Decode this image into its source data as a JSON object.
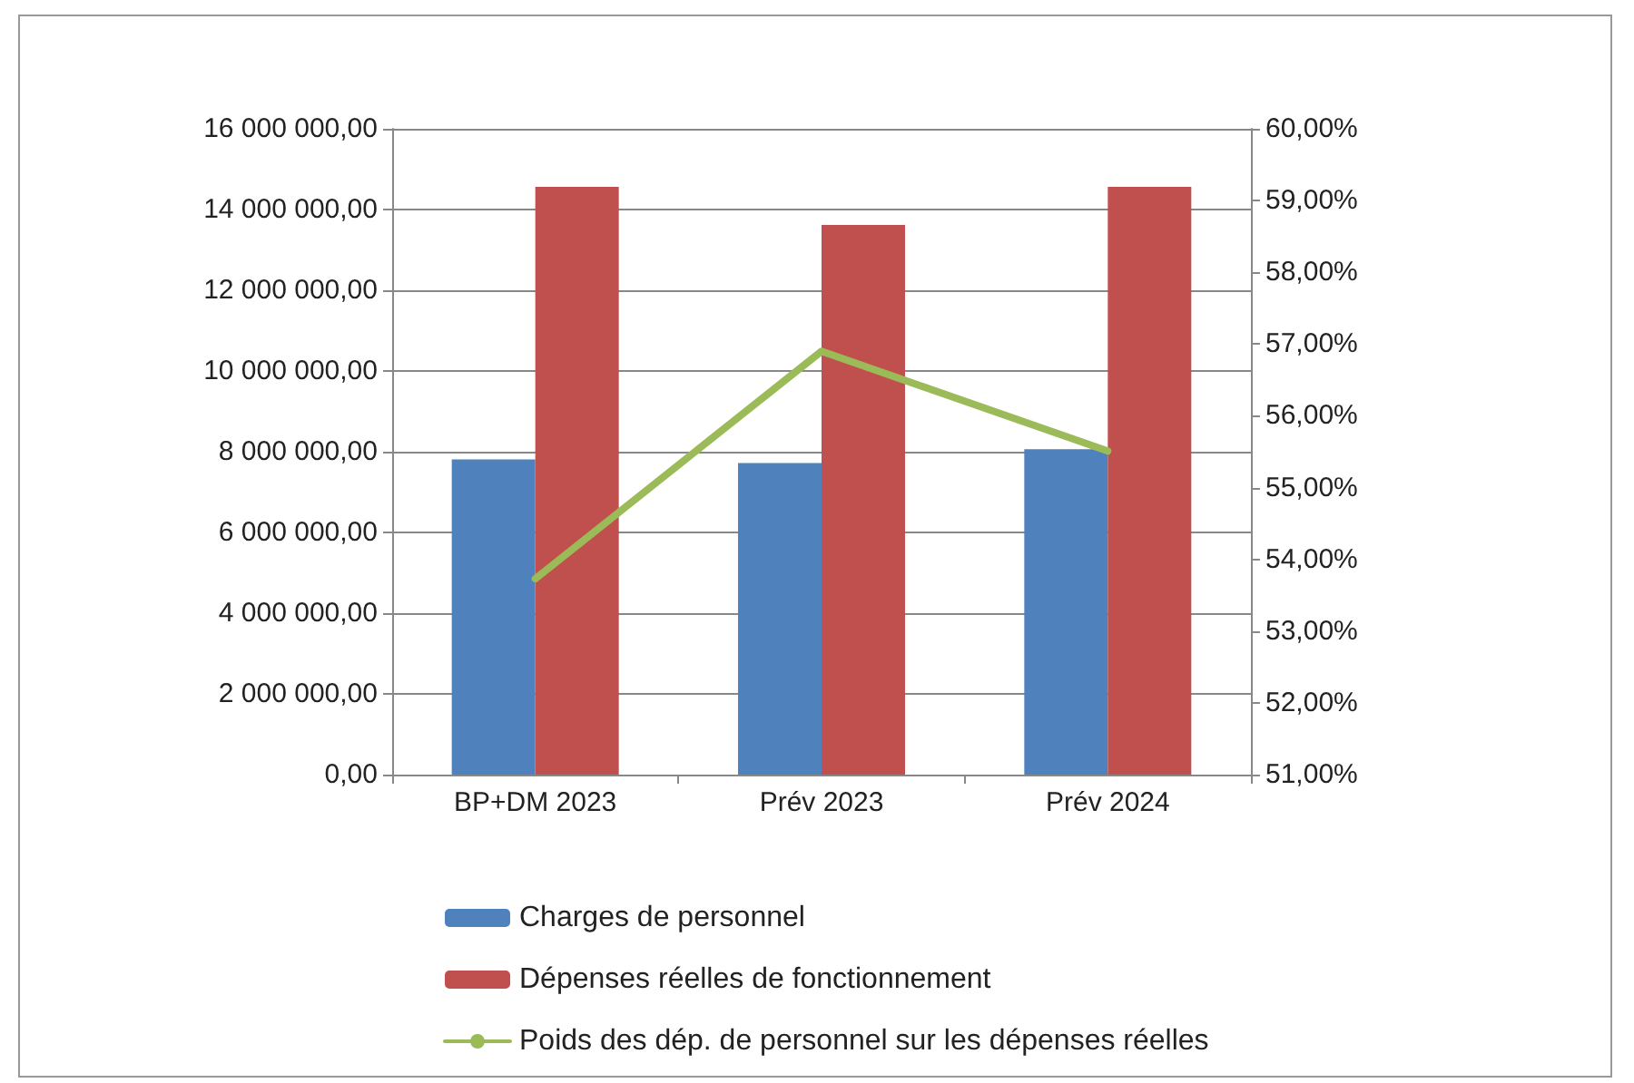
{
  "chart_data": {
    "type": "bar",
    "categories": [
      "BP+DM 2023",
      "Prév 2023",
      "Prév 2024"
    ],
    "series": [
      {
        "name": "Charges de personnel",
        "color": "#4f81bd",
        "values": [
          7810000,
          7720000,
          8060000
        ]
      },
      {
        "name": "Dépenses réelles de fonctionnement",
        "color": "#c0504d",
        "values": [
          14560000,
          13620000,
          14560000
        ]
      },
      {
        "name": "Poids des dép. de personnel sur les dépenses réelles",
        "type": "line",
        "axis": "y2",
        "color": "#9bbb59",
        "values": [
          53.73,
          56.9,
          55.51
        ]
      }
    ],
    "ylim": [
      0,
      16000000
    ],
    "yticks": [
      {
        "value": 0,
        "label": "0,00"
      },
      {
        "value": 2000000,
        "label": "2 000 000,00"
      },
      {
        "value": 4000000,
        "label": "4 000 000,00"
      },
      {
        "value": 6000000,
        "label": "6 000 000,00"
      },
      {
        "value": 8000000,
        "label": "8 000 000,00"
      },
      {
        "value": 10000000,
        "label": "10 000 000,00"
      },
      {
        "value": 12000000,
        "label": "12 000 000,00"
      },
      {
        "value": 14000000,
        "label": "14 000 000,00"
      },
      {
        "value": 16000000,
        "label": "16 000 000,00"
      }
    ],
    "y2lim": [
      51,
      60
    ],
    "y2ticks": [
      {
        "value": 51,
        "label": "51,00%"
      },
      {
        "value": 52,
        "label": "52,00%"
      },
      {
        "value": 53,
        "label": "53,00%"
      },
      {
        "value": 54,
        "label": "54,00%"
      },
      {
        "value": 55,
        "label": "55,00%"
      },
      {
        "value": 56,
        "label": "56,00%"
      },
      {
        "value": 57,
        "label": "57,00%"
      },
      {
        "value": 58,
        "label": "58,00%"
      },
      {
        "value": 59,
        "label": "59,00%"
      },
      {
        "value": 60,
        "label": "60,00%"
      }
    ],
    "grid": "y",
    "legend": "bottom",
    "marker": "none",
    "line_style": "solid"
  }
}
